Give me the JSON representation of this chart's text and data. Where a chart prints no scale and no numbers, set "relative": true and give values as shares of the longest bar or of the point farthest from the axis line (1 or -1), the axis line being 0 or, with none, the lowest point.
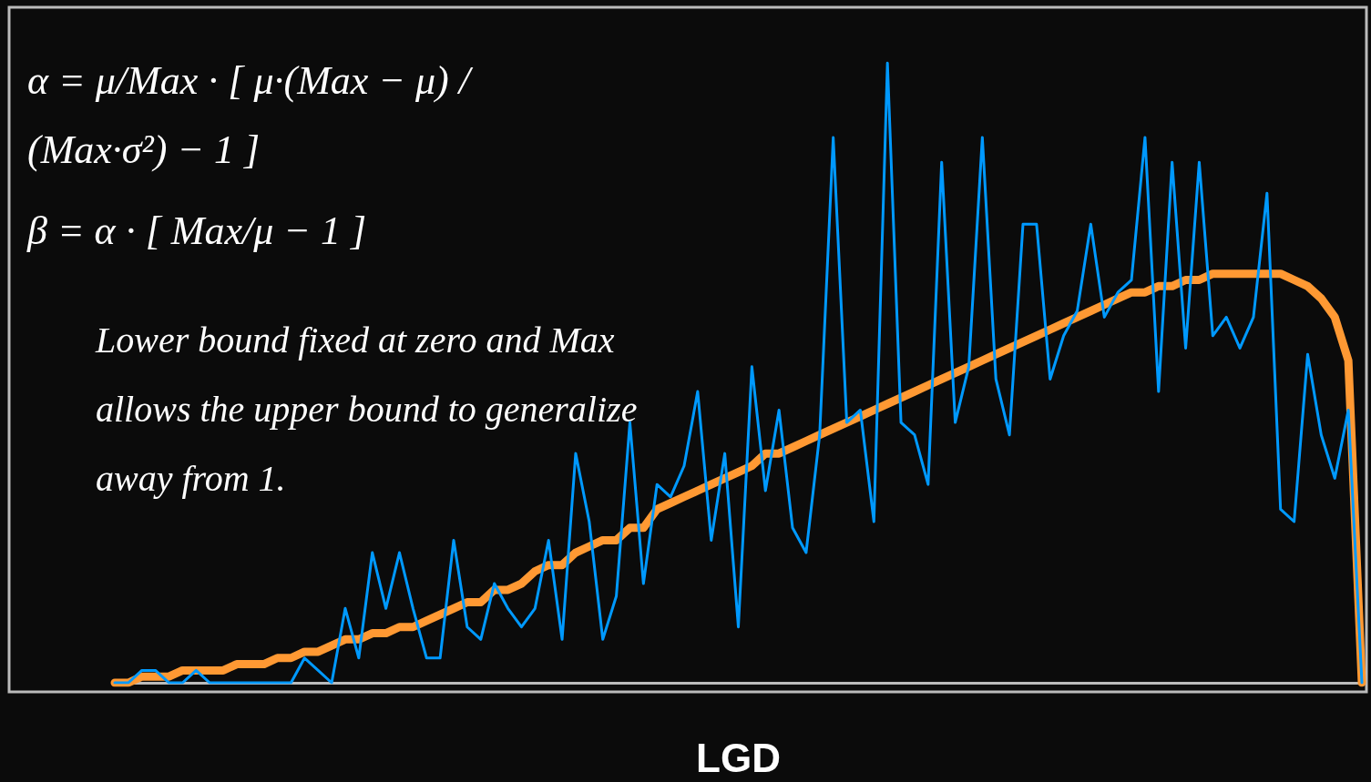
{
  "chart_data": {
    "type": "line",
    "relative": true,
    "xlabel": "LGD",
    "grid": false,
    "marker": "none",
    "annotations": [
      "α = μ/Max · [ μ·(Max − μ) / (Max·σ²) − 1 ]",
      "β = α · [ Max/μ − 1 ]",
      "Lower bound fixed at zero and Max allows the upper bound to generalize away from 1."
    ],
    "categories": [
      null,
      null,
      null,
      null,
      null,
      null,
      null,
      null,
      null,
      null,
      null,
      null,
      null,
      null,
      null,
      null,
      null,
      null,
      null,
      null,
      null,
      null,
      null,
      null,
      null,
      null,
      null,
      null,
      null,
      null,
      null,
      null,
      null,
      null,
      null,
      null,
      null,
      null,
      null,
      null,
      null,
      null,
      null,
      null,
      null,
      null,
      null,
      null,
      null,
      null,
      null,
      null,
      null,
      null,
      null,
      null,
      null,
      null,
      null,
      null,
      null,
      null,
      null,
      null,
      null,
      null,
      null,
      null,
      null,
      null,
      null,
      null,
      null,
      null,
      null,
      null,
      null,
      null,
      null,
      null,
      null,
      null,
      null,
      null,
      null,
      null,
      null,
      null,
      null,
      null,
      null,
      null,
      null
    ],
    "series": [
      {
        "color": "#ff9933",
        "values": [
          0,
          0,
          0.01,
          0.01,
          0.01,
          0.02,
          0.02,
          0.02,
          0.02,
          0.03,
          0.03,
          0.03,
          0.04,
          0.04,
          0.05,
          0.05,
          0.06,
          0.07,
          0.07,
          0.08,
          0.08,
          0.09,
          0.09,
          0.1,
          0.11,
          0.12,
          0.13,
          0.13,
          0.15,
          0.15,
          0.16,
          0.18,
          0.19,
          0.19,
          0.21,
          0.22,
          0.23,
          0.23,
          0.25,
          0.25,
          0.28,
          0.29,
          0.3,
          0.31,
          0.32,
          0.33,
          0.34,
          0.35,
          0.37,
          0.37,
          0.38,
          0.39,
          0.4,
          0.41,
          0.42,
          0.43,
          0.44,
          0.45,
          0.46,
          0.47,
          0.48,
          0.49,
          0.5,
          0.51,
          0.52,
          0.53,
          0.54,
          0.55,
          0.56,
          0.57,
          0.58,
          0.59,
          0.6,
          0.61,
          0.62,
          0.63,
          0.63,
          0.64,
          0.64,
          0.65,
          0.65,
          0.66,
          0.66,
          0.66,
          0.66,
          0.66,
          0.66,
          0.65,
          0.64,
          0.62,
          0.59,
          0.52,
          0
        ]
      },
      {
        "color": "#0099ff",
        "values": [
          0,
          0,
          0.02,
          0.02,
          0,
          0,
          0.02,
          0,
          0,
          0,
          0,
          0,
          0,
          0,
          0.04,
          0.02,
          0,
          0.12,
          0.04,
          0.21,
          0.12,
          0.21,
          0.12,
          0.04,
          0.04,
          0.23,
          0.09,
          0.07,
          0.16,
          0.12,
          0.09,
          0.12,
          0.23,
          0.07,
          0.37,
          0.26,
          0.07,
          0.14,
          0.42,
          0.16,
          0.32,
          0.3,
          0.35,
          0.47,
          0.23,
          0.37,
          0.09,
          0.51,
          0.31,
          0.44,
          0.25,
          0.21,
          0.4,
          0.88,
          0.42,
          0.44,
          0.26,
          1,
          0.42,
          0.4,
          0.32,
          0.84,
          0.42,
          0.51,
          0.88,
          0.49,
          0.4,
          0.74,
          0.74,
          0.49,
          0.56,
          0.6,
          0.74,
          0.59,
          0.63,
          0.65,
          0.88,
          0.47,
          0.84,
          0.54,
          0.84,
          0.56,
          0.59,
          0.54,
          0.59,
          0.79,
          0.28,
          0.26,
          0.53,
          0.4,
          0.33,
          0.44,
          0
        ]
      }
    ]
  }
}
